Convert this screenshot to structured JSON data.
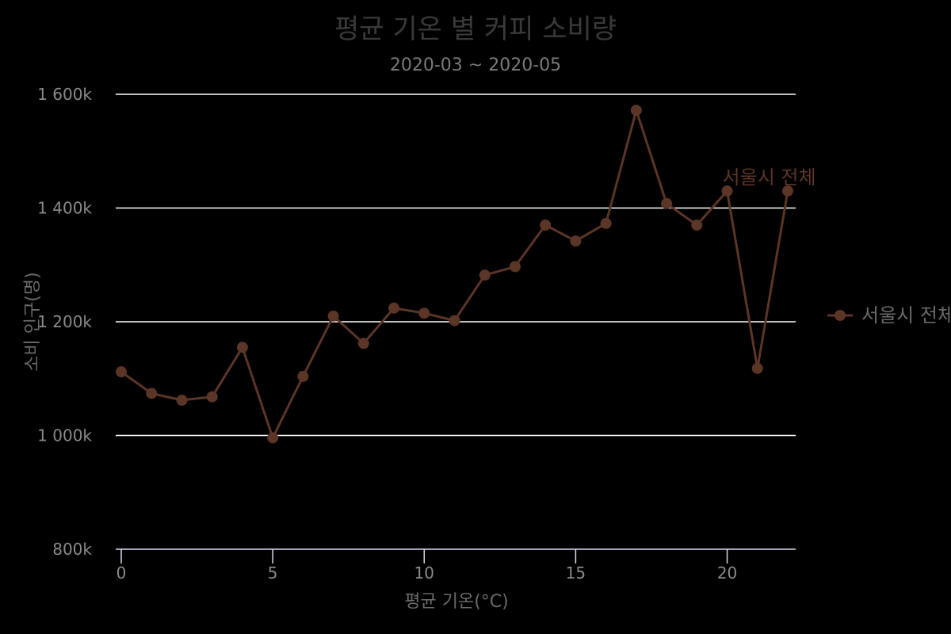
{
  "chart_data": {
    "type": "line",
    "title": "평균 기온 별 커피 소비량",
    "subtitle": "2020-03 ~ 2020-05",
    "xlabel": "평균 기온(°C)",
    "ylabel": "소비 인구(명)",
    "xlim": [
      0,
      22
    ],
    "ylim": [
      800000,
      1600000
    ],
    "xticks": [
      0,
      5,
      10,
      15,
      20
    ],
    "yticks": [
      800000,
      1000000,
      1200000,
      1400000,
      1600000
    ],
    "ytick_labels": [
      "800k",
      "1 000k",
      "1 200k",
      "1 400k",
      "1 600k"
    ],
    "grid": "horizontal",
    "legend_position": "right",
    "series": [
      {
        "name": "서울시 전체",
        "color": "#5b3526",
        "x": [
          0,
          1,
          2,
          3,
          4,
          5,
          6,
          7,
          8,
          9,
          10,
          11,
          12,
          13,
          14,
          15,
          16,
          17,
          18,
          19,
          20,
          21,
          22
        ],
        "values": [
          1112000,
          1074000,
          1062000,
          1068000,
          1155000,
          996000,
          1104000,
          1210000,
          1162000,
          1224000,
          1215000,
          1202000,
          1282000,
          1297000,
          1370000,
          1342000,
          1373000,
          1572000,
          1408000,
          1370000,
          1430000,
          1118000,
          1430000
        ]
      }
    ],
    "annotation": {
      "text": "서울시 전체",
      "x": 20,
      "y": 1430000,
      "color": "#5b3526"
    }
  },
  "legend": {
    "label": "서울시 전체"
  }
}
